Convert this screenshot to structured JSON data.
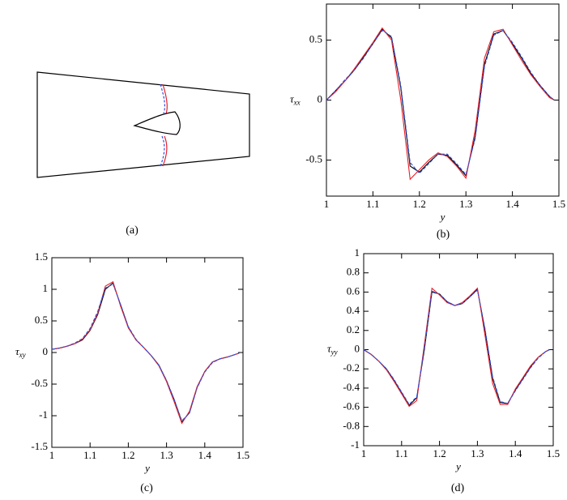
{
  "panel_a": {
    "caption": "(a)"
  },
  "chart_data": [
    {
      "type": "line",
      "caption": "(b)",
      "xlabel": "y",
      "ylabel": {
        "symbol": "τ",
        "subscript": "xx"
      },
      "x": [
        1,
        1.02,
        1.04,
        1.06,
        1.08,
        1.1,
        1.12,
        1.14,
        1.16,
        1.18,
        1.2,
        1.22,
        1.24,
        1.26,
        1.28,
        1.3,
        1.32,
        1.34,
        1.36,
        1.38,
        1.4,
        1.42,
        1.44,
        1.46,
        1.48,
        1.49
      ],
      "xlim": [
        1,
        1.5
      ],
      "xticks": [
        1,
        1.1,
        1.2,
        1.3,
        1.4,
        1.5
      ],
      "ylim": [
        -0.8,
        0.8
      ],
      "yticks": [
        -0.5,
        0,
        0.5
      ],
      "series": [
        {
          "color": "#000000",
          "values": [
            0,
            0.08,
            0.16,
            0.25,
            0.36,
            0.47,
            0.59,
            0.52,
            0.1,
            -0.55,
            -0.6,
            -0.52,
            -0.45,
            -0.46,
            -0.54,
            -0.63,
            -0.3,
            0.3,
            0.55,
            0.58,
            0.47,
            0.35,
            0.22,
            0.12,
            0.03,
            0
          ]
        },
        {
          "color": "#e8202a",
          "values": [
            0,
            0.07,
            0.16,
            0.26,
            0.37,
            0.48,
            0.6,
            0.5,
            0.0,
            -0.66,
            -0.58,
            -0.5,
            -0.44,
            -0.47,
            -0.55,
            -0.65,
            -0.25,
            0.35,
            0.57,
            0.59,
            0.46,
            0.33,
            0.21,
            0.11,
            0.02,
            0
          ]
        },
        {
          "color": "#3050e0",
          "dashed": true,
          "values": [
            0,
            0.08,
            0.17,
            0.25,
            0.35,
            0.47,
            0.58,
            0.53,
            0.12,
            -0.52,
            -0.61,
            -0.53,
            -0.45,
            -0.45,
            -0.53,
            -0.62,
            -0.32,
            0.28,
            0.54,
            0.58,
            0.48,
            0.36,
            0.23,
            0.12,
            0.03,
            0
          ]
        }
      ]
    },
    {
      "type": "line",
      "caption": "(c)",
      "xlabel": "y",
      "ylabel": {
        "symbol": "τ",
        "subscript": "xy"
      },
      "x": [
        1,
        1.02,
        1.04,
        1.06,
        1.08,
        1.1,
        1.12,
        1.14,
        1.16,
        1.18,
        1.2,
        1.22,
        1.24,
        1.26,
        1.28,
        1.3,
        1.32,
        1.34,
        1.36,
        1.38,
        1.4,
        1.42,
        1.44,
        1.46,
        1.48,
        1.49
      ],
      "xlim": [
        1,
        1.5
      ],
      "xticks": [
        1,
        1.1,
        1.2,
        1.3,
        1.4,
        1.5
      ],
      "ylim": [
        -1.5,
        1.5
      ],
      "yticks": [
        -1.5,
        -1,
        -0.5,
        0,
        0.5,
        1,
        1.5
      ],
      "series": [
        {
          "color": "#000000",
          "values": [
            0.05,
            0.07,
            0.1,
            0.14,
            0.2,
            0.35,
            0.6,
            1.0,
            1.1,
            0.75,
            0.4,
            0.2,
            0.08,
            -0.05,
            -0.2,
            -0.45,
            -0.75,
            -1.1,
            -0.95,
            -0.55,
            -0.3,
            -0.15,
            -0.1,
            -0.07,
            -0.03,
            -0.01
          ]
        },
        {
          "color": "#e8202a",
          "values": [
            0.05,
            0.07,
            0.1,
            0.14,
            0.21,
            0.36,
            0.62,
            1.05,
            1.12,
            0.73,
            0.39,
            0.2,
            0.08,
            -0.05,
            -0.21,
            -0.46,
            -0.78,
            -1.12,
            -0.93,
            -0.54,
            -0.3,
            -0.15,
            -0.1,
            -0.07,
            -0.03,
            -0.01
          ]
        },
        {
          "color": "#3050e0",
          "dashed": true,
          "values": [
            0.05,
            0.07,
            0.1,
            0.15,
            0.22,
            0.38,
            0.65,
            1.02,
            1.08,
            0.76,
            0.41,
            0.21,
            0.08,
            -0.05,
            -0.2,
            -0.44,
            -0.74,
            -1.08,
            -0.96,
            -0.56,
            -0.31,
            -0.16,
            -0.1,
            -0.07,
            -0.03,
            -0.01
          ]
        }
      ]
    },
    {
      "type": "line",
      "caption": "(d)",
      "xlabel": "y",
      "ylabel": {
        "symbol": "τ",
        "subscript": "yy"
      },
      "x": [
        1,
        1.02,
        1.04,
        1.06,
        1.08,
        1.1,
        1.12,
        1.14,
        1.16,
        1.18,
        1.2,
        1.22,
        1.24,
        1.26,
        1.28,
        1.3,
        1.32,
        1.34,
        1.36,
        1.38,
        1.4,
        1.42,
        1.44,
        1.46,
        1.48,
        1.49
      ],
      "xlim": [
        1,
        1.5
      ],
      "xticks": [
        1,
        1.1,
        1.2,
        1.3,
        1.4,
        1.5
      ],
      "ylim": [
        -1,
        1
      ],
      "yticks": [
        -1,
        -0.8,
        -0.6,
        -0.4,
        -0.2,
        0,
        0.2,
        0.4,
        0.6,
        0.8,
        1
      ],
      "series": [
        {
          "color": "#000000",
          "values": [
            0,
            -0.05,
            -0.12,
            -0.2,
            -0.32,
            -0.45,
            -0.58,
            -0.5,
            0.0,
            0.6,
            0.58,
            0.5,
            0.46,
            0.48,
            0.55,
            0.63,
            0.2,
            -0.3,
            -0.55,
            -0.56,
            -0.42,
            -0.3,
            -0.18,
            -0.08,
            -0.02,
            0
          ]
        },
        {
          "color": "#e8202a",
          "values": [
            0,
            -0.05,
            -0.12,
            -0.21,
            -0.33,
            -0.46,
            -0.59,
            -0.53,
            0.05,
            0.64,
            0.57,
            0.49,
            0.46,
            0.49,
            0.56,
            0.64,
            0.15,
            -0.35,
            -0.57,
            -0.57,
            -0.41,
            -0.29,
            -0.17,
            -0.08,
            -0.02,
            0
          ]
        },
        {
          "color": "#3050e0",
          "dashed": true,
          "values": [
            0,
            -0.05,
            -0.12,
            -0.2,
            -0.31,
            -0.44,
            -0.57,
            -0.49,
            0.02,
            0.61,
            0.58,
            0.5,
            0.46,
            0.48,
            0.55,
            0.62,
            0.22,
            -0.28,
            -0.54,
            -0.56,
            -0.43,
            -0.31,
            -0.19,
            -0.09,
            -0.02,
            0
          ]
        }
      ]
    }
  ]
}
